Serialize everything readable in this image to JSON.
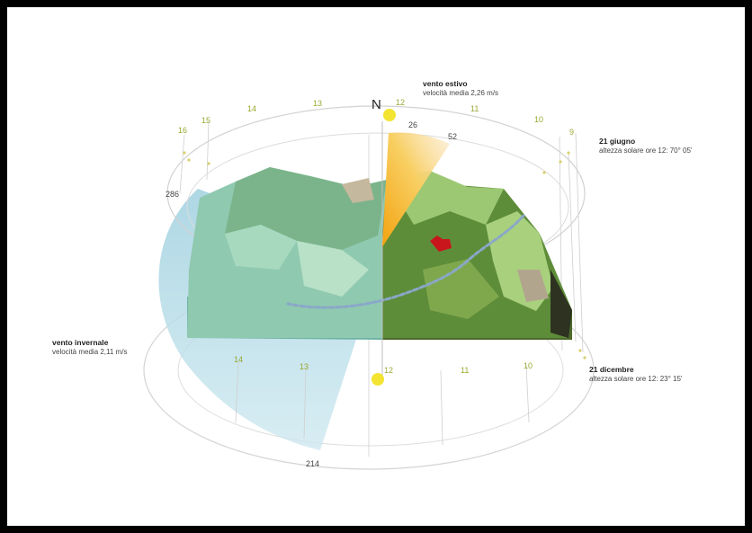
{
  "north": "N",
  "summer_wind": {
    "title": "vento estivo",
    "detail": "velocità media 2,26 m/s"
  },
  "winter_wind": {
    "title": "vento invernale",
    "detail": "velocità media 2,11 m/s"
  },
  "june": {
    "title": "21 giugno",
    "detail": "altezza solare ore 12: 70° 05'"
  },
  "december": {
    "title": "21 dicembre",
    "detail": "altezza solare ore 12: 23° 15'"
  },
  "angles": {
    "a26": "26",
    "a52": "52",
    "a286": "286",
    "a214": "214"
  },
  "summer_hours": [
    "16",
    "15",
    "14",
    "13",
    "12",
    "11",
    "10",
    "9"
  ],
  "winter_hours": [
    "14",
    "13",
    "12",
    "11",
    "10"
  ],
  "colors": {
    "sun": "#f2e431",
    "hour_label": "#9aa830",
    "winter_sector": "#a9d6e2",
    "summer_sector": "#f6b21a",
    "terrain_dark": "#587d34",
    "terrain_light": "#b6d68c",
    "town": "#c8161c"
  }
}
